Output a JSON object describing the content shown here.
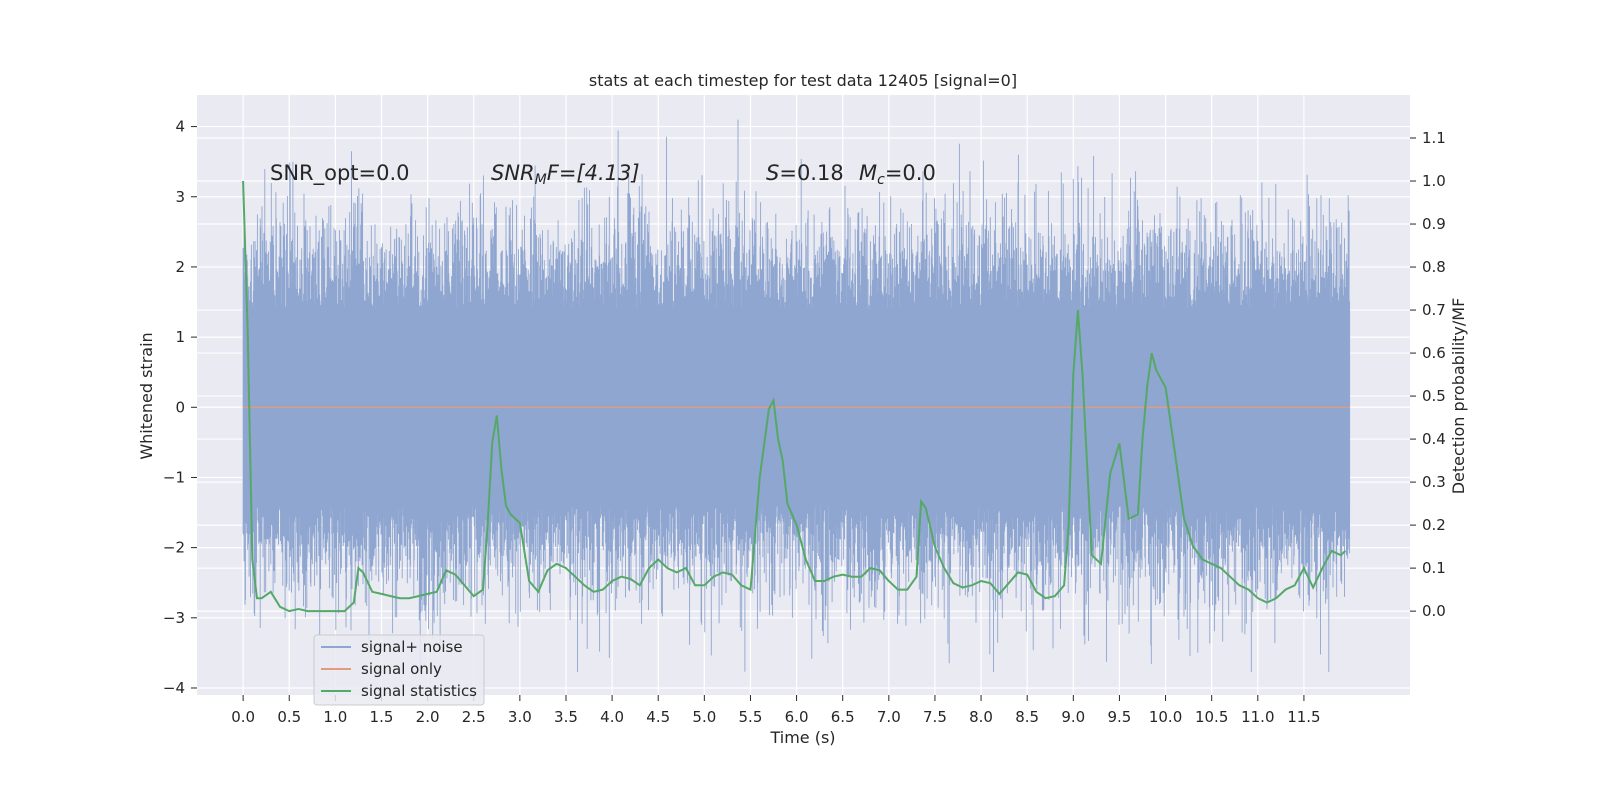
{
  "chart_data": {
    "type": "line",
    "title": "stats at each timestep for test data 12405 [signal=0]",
    "xlabel": "Time (s)",
    "ylabel_left": "Whitened strain",
    "ylabel_right": "Detection probability/MF",
    "xlim": [
      -0.5,
      12.65
    ],
    "ylim_left": [
      -4.1,
      4.45
    ],
    "ylim_right": [
      -0.195,
      1.2
    ],
    "x_ticks": [
      "0.0",
      "0.5",
      "1.0",
      "1.5",
      "2.0",
      "2.5",
      "3.0",
      "3.5",
      "4.0",
      "4.5",
      "5.0",
      "5.5",
      "6.0",
      "6.5",
      "7.0",
      "7.5",
      "8.0",
      "8.5",
      "9.0",
      "9.5",
      "10.0",
      "10.5",
      "11.0",
      "11.5"
    ],
    "y_ticks_left": [
      "4",
      "3",
      "2",
      "1",
      "0",
      "−1",
      "−2",
      "−3",
      "−4"
    ],
    "y_ticks_right": [
      "1.1",
      "1.0",
      "0.9",
      "0.8",
      "0.7",
      "0.6",
      "0.5",
      "0.4",
      "0.3",
      "0.2",
      "0.1",
      "0.0"
    ],
    "grid": true,
    "legend_position": "lower-left",
    "annotations": {
      "snr_opt": "SNR_opt=0.0",
      "snr_mf_main": "SNR",
      "snr_mf_sub": "M",
      "snr_mf_rest": "F=[4.13]",
      "s_main": "S",
      "s_rest": "=0.18",
      "mc_main": "M",
      "mc_sub": "c",
      "mc_rest": "=0.0"
    },
    "series": [
      {
        "name": "signal+ noise",
        "axis": "left",
        "color": "#8fa6d0",
        "duration_s": 12.0,
        "typical_amplitude": 1.4,
        "max_abs": 4.1
      },
      {
        "name": "signal only",
        "axis": "left",
        "color": "#e39a7e",
        "x": [
          0.0,
          12.0
        ],
        "y": [
          0.0,
          0.0
        ]
      },
      {
        "name": "signal statistics",
        "axis": "right",
        "color": "#55a868",
        "x": [
          0.0,
          0.05,
          0.1,
          0.15,
          0.2,
          0.3,
          0.4,
          0.5,
          0.6,
          0.7,
          0.8,
          0.9,
          1.0,
          1.1,
          1.2,
          1.25,
          1.3,
          1.4,
          1.5,
          1.6,
          1.7,
          1.8,
          1.9,
          2.0,
          2.1,
          2.2,
          2.3,
          2.4,
          2.5,
          2.6,
          2.65,
          2.7,
          2.75,
          2.8,
          2.85,
          2.9,
          3.0,
          3.1,
          3.2,
          3.3,
          3.4,
          3.5,
          3.6,
          3.7,
          3.8,
          3.9,
          4.0,
          4.1,
          4.2,
          4.3,
          4.4,
          4.5,
          4.6,
          4.7,
          4.8,
          4.9,
          5.0,
          5.1,
          5.2,
          5.3,
          5.4,
          5.5,
          5.6,
          5.7,
          5.75,
          5.8,
          5.85,
          5.9,
          6.0,
          6.1,
          6.2,
          6.3,
          6.4,
          6.5,
          6.6,
          6.7,
          6.8,
          6.9,
          7.0,
          7.1,
          7.2,
          7.3,
          7.35,
          7.4,
          7.5,
          7.6,
          7.7,
          7.8,
          7.9,
          8.0,
          8.1,
          8.2,
          8.3,
          8.4,
          8.5,
          8.6,
          8.7,
          8.8,
          8.9,
          8.95,
          9.0,
          9.05,
          9.1,
          9.2,
          9.3,
          9.4,
          9.5,
          9.6,
          9.7,
          9.75,
          9.8,
          9.85,
          9.9,
          10.0,
          10.1,
          10.2,
          10.3,
          10.4,
          10.5,
          10.6,
          10.7,
          10.8,
          10.9,
          11.0,
          11.1,
          11.2,
          11.3,
          11.4,
          11.5,
          11.6,
          11.7,
          11.8,
          11.9,
          11.95
        ],
        "y": [
          1.0,
          0.65,
          0.12,
          0.03,
          0.03,
          0.045,
          0.01,
          0.0,
          0.005,
          0.0,
          0.0,
          0.0,
          0.0,
          0.0,
          0.02,
          0.1,
          0.09,
          0.045,
          0.04,
          0.035,
          0.03,
          0.03,
          0.035,
          0.04,
          0.045,
          0.095,
          0.085,
          0.06,
          0.035,
          0.05,
          0.2,
          0.39,
          0.455,
          0.33,
          0.245,
          0.225,
          0.205,
          0.07,
          0.045,
          0.095,
          0.11,
          0.1,
          0.08,
          0.06,
          0.045,
          0.05,
          0.07,
          0.08,
          0.075,
          0.06,
          0.1,
          0.12,
          0.1,
          0.09,
          0.1,
          0.06,
          0.06,
          0.08,
          0.09,
          0.085,
          0.06,
          0.05,
          0.31,
          0.47,
          0.49,
          0.4,
          0.35,
          0.25,
          0.2,
          0.12,
          0.07,
          0.07,
          0.08,
          0.085,
          0.08,
          0.08,
          0.1,
          0.095,
          0.07,
          0.05,
          0.05,
          0.08,
          0.255,
          0.24,
          0.15,
          0.1,
          0.065,
          0.055,
          0.06,
          0.07,
          0.065,
          0.04,
          0.065,
          0.09,
          0.085,
          0.045,
          0.03,
          0.035,
          0.06,
          0.2,
          0.55,
          0.7,
          0.55,
          0.13,
          0.11,
          0.32,
          0.39,
          0.215,
          0.225,
          0.4,
          0.52,
          0.6,
          0.56,
          0.52,
          0.37,
          0.215,
          0.15,
          0.12,
          0.11,
          0.1,
          0.08,
          0.06,
          0.05,
          0.03,
          0.02,
          0.03,
          0.05,
          0.06,
          0.1,
          0.055,
          0.1,
          0.14,
          0.13,
          0.14
        ]
      }
    ]
  }
}
